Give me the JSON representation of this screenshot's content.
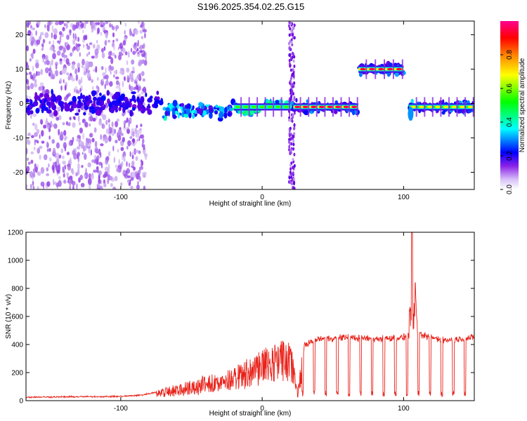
{
  "title": "S196.2025.354.02.25.G15",
  "chart_data": [
    {
      "type": "heatmap",
      "xlabel": "Height of straight line (km)",
      "ylabel": "Frequency (Hz)",
      "xlim": [
        -167,
        150
      ],
      "ylim": [
        -25,
        24
      ],
      "xticks": [
        -100,
        0,
        100
      ],
      "yticks": [
        -20,
        -10,
        0,
        10,
        20
      ],
      "colorbar": {
        "label": "Normalized spectral amplitude",
        "ticks": [
          0.0,
          0.2,
          0.4,
          0.6,
          0.8
        ],
        "range": [
          0,
          1
        ],
        "colormap": [
          "#ffffff",
          "#c8a8f0",
          "#7000e0",
          "#0000ff",
          "#00ffff",
          "#00ff00",
          "#ffff00",
          "#ff8000",
          "#ff0000",
          "#ff0090"
        ]
      },
      "segments": [
        {
          "x_start": -167,
          "x_end": -70,
          "freq_hz": 0,
          "amplitude": 0.15,
          "note": "scattered noise"
        },
        {
          "x_start": -70,
          "x_end": -20,
          "freq_hz": -3,
          "amplitude": 0.25
        },
        {
          "x_start": -20,
          "x_end": 20,
          "freq_hz": -1,
          "amplitude": 0.55
        },
        {
          "x_start": 22,
          "x_end": 68,
          "freq_hz": -1,
          "amplitude": 0.95
        },
        {
          "x_start": 68,
          "x_end": 100,
          "freq_hz": 10,
          "amplitude": 0.95
        },
        {
          "x_start": 104,
          "x_end": 150,
          "freq_hz": -1,
          "amplitude": 0.7
        }
      ]
    },
    {
      "type": "line",
      "xlabel": "Height of straight line (km)",
      "ylabel": "SNR (10 * v/v)",
      "xlim": [
        -167,
        150
      ],
      "ylim": [
        0,
        1200
      ],
      "xticks": [
        -100,
        0,
        100
      ],
      "yticks": [
        0,
        200,
        400,
        600,
        800,
        1000,
        1200
      ],
      "color": "#e8231b",
      "trend": {
        "x": [
          -167,
          -100,
          -85,
          -70,
          -50,
          -30,
          -10,
          0,
          10,
          20,
          25,
          30,
          40,
          60,
          80,
          100,
          104,
          106,
          110,
          130,
          150
        ],
        "y": [
          25,
          30,
          40,
          70,
          110,
          160,
          220,
          280,
          330,
          350,
          60,
          400,
          440,
          450,
          440,
          450,
          470,
          1200,
          470,
          430,
          450
        ]
      }
    }
  ]
}
